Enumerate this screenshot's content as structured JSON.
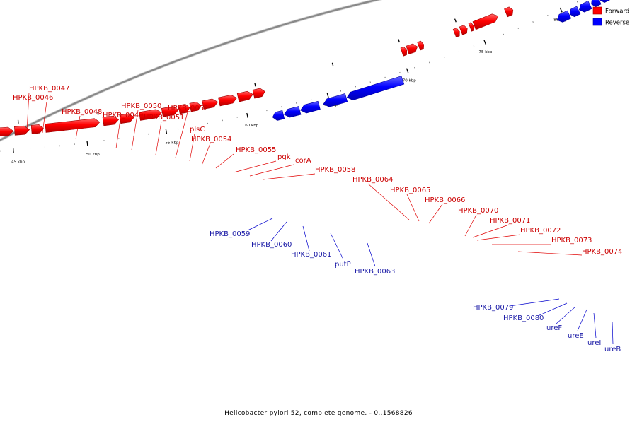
{
  "caption": "Helicobacter pylori 52, complete genome. - 0..1568826",
  "legend": [
    {
      "label": "Forward",
      "color": "#ff0000"
    },
    {
      "label": "Reverse",
      "color": "#0000ff"
    }
  ],
  "colors": {
    "forward": "#ff0000",
    "forward_edge": "#a00000",
    "reverse": "#0000ff",
    "reverse_edge": "#0000a0",
    "backbone": "#888888"
  },
  "ticks": [
    "45 kbp",
    "50 kbp",
    "55 kbp",
    "60 kbp",
    "65 kbp",
    "70 kbp",
    "75 kbp",
    "80 kbp"
  ],
  "forward_labels": [
    "HPKB_0047",
    "HPKB_0046",
    "HPKB_0048",
    "HPKB_0050",
    "HPKB_0049",
    "HPKB_0052",
    "HPKB_0051",
    "plsC",
    "HPKB_0054",
    "HPKB_0055",
    "pgk",
    "corA",
    "HPKB_0058",
    "HPKB_0064",
    "HPKB_0065",
    "HPKB_0066",
    "HPKB_0070",
    "HPKB_0071",
    "HPKB_0072",
    "HPKB_0073",
    "HPKB_0074"
  ],
  "reverse_labels": [
    "HPKB_0059",
    "HPKB_0060",
    "HPKB_0061",
    "putP",
    "HPKB_0063",
    "HPKB_0079",
    "HPKB_0080",
    "ureF",
    "ureE",
    "ureI",
    "ureB"
  ]
}
